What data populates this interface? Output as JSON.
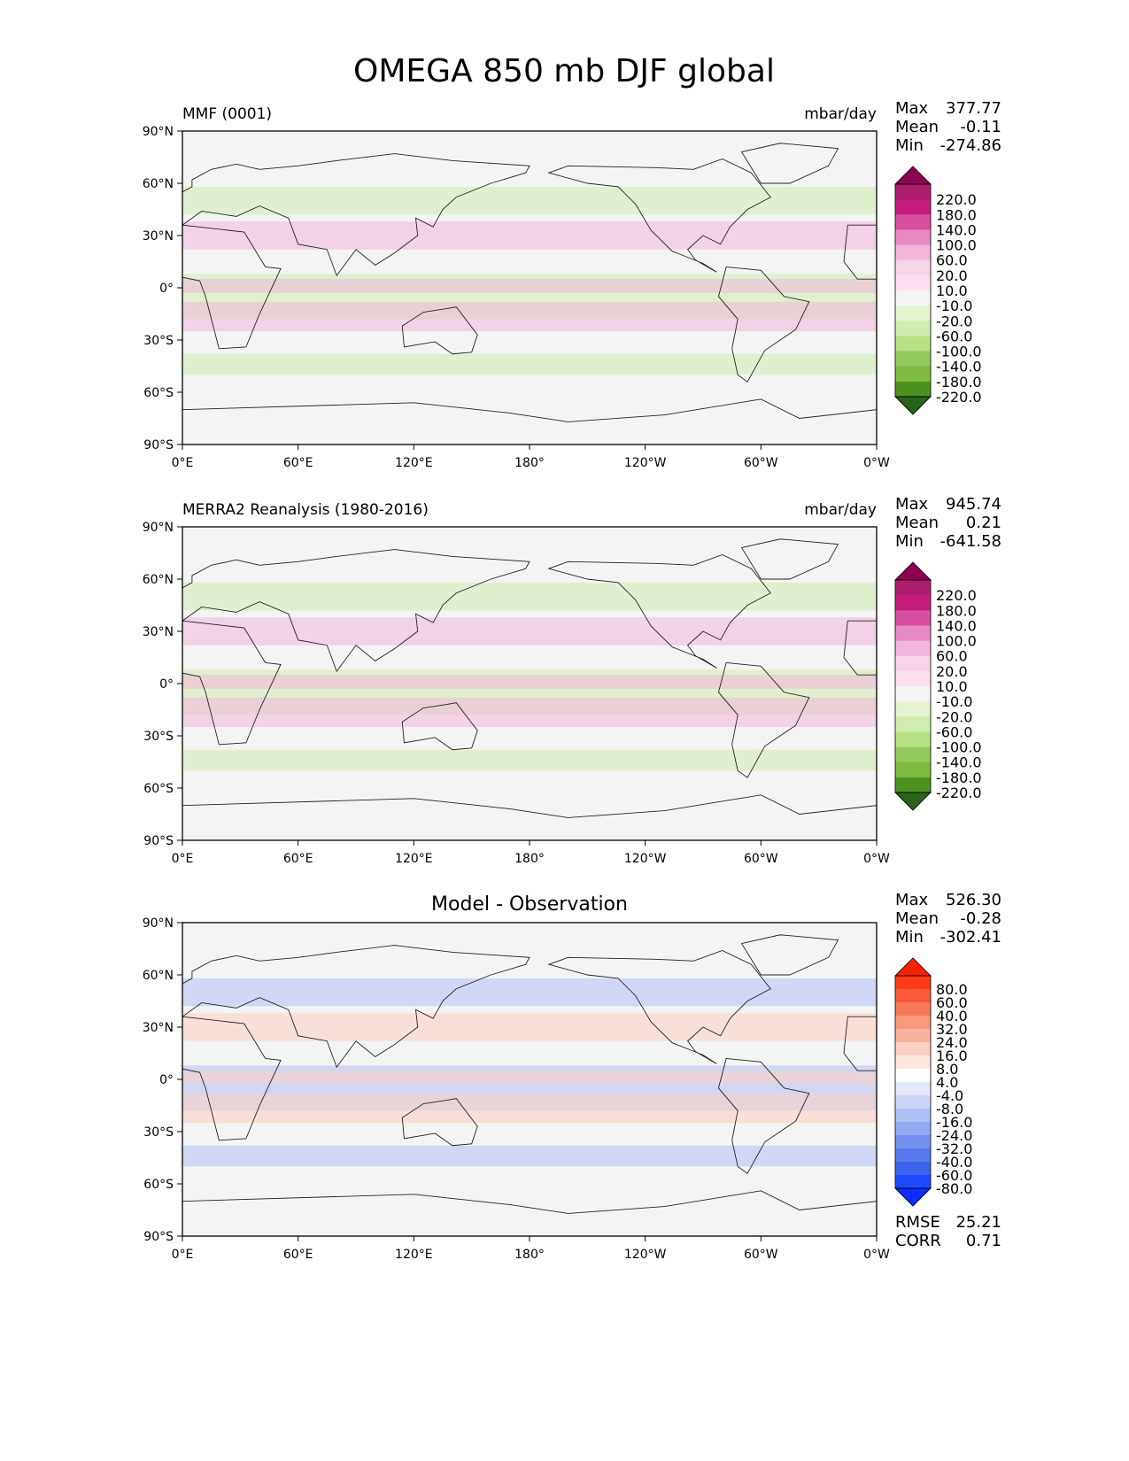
{
  "title": "OMEGA 850 mb DJF global",
  "panels": [
    {
      "left_title": "MMF (0001)",
      "center_title": "",
      "units": "mbar/day",
      "stats": [
        {
          "label": "Max",
          "value": "377.77"
        },
        {
          "label": "Mean",
          "value": "-0.11"
        },
        {
          "label": "Min",
          "value": "-274.86"
        }
      ],
      "extra_stats": []
    },
    {
      "left_title": "MERRA2 Reanalysis (1980-2016)",
      "center_title": "",
      "units": "mbar/day",
      "stats": [
        {
          "label": "Max",
          "value": "945.74"
        },
        {
          "label": "Mean",
          "value": "0.21"
        },
        {
          "label": "Min",
          "value": "-641.58"
        }
      ],
      "extra_stats": []
    },
    {
      "left_title": "",
      "center_title": "Model - Observation",
      "units": "",
      "stats": [
        {
          "label": "Max",
          "value": "526.30"
        },
        {
          "label": "Mean",
          "value": "-0.28"
        },
        {
          "label": "Min",
          "value": "-302.41"
        }
      ],
      "extra_stats": [
        {
          "label": "RMSE",
          "value": "25.21"
        },
        {
          "label": "CORR",
          "value": "0.71"
        }
      ]
    }
  ],
  "chart_data": [
    {
      "type": "heatmap",
      "title": "MMF (0001)",
      "units": "mbar/day",
      "x_ticks": [
        "0°E",
        "60°E",
        "120°E",
        "180°",
        "120°W",
        "60°W",
        "0°W"
      ],
      "y_ticks": [
        "90°N",
        "60°N",
        "30°N",
        "0°",
        "30°S",
        "60°S",
        "90°S"
      ],
      "colorbar": {
        "levels": [
          "220.0",
          "180.0",
          "140.0",
          "100.0",
          "60.0",
          "20.0",
          "10.0",
          "-10.0",
          "-20.0",
          "-60.0",
          "-100.0",
          "-140.0",
          "-180.0",
          "-220.0"
        ],
        "colors": [
          "#8e0152",
          "#ad1e6e",
          "#c51b7d",
          "#d94f9f",
          "#e78ac3",
          "#f1b6da",
          "#f7d4e8",
          "#fde0ef",
          "#f5f5f5",
          "#e6f5d0",
          "#d0ecb0",
          "#b8e186",
          "#94c95d",
          "#7fbc41",
          "#4d9221",
          "#276419"
        ],
        "extend": "both"
      }
    },
    {
      "type": "heatmap",
      "title": "MERRA2 Reanalysis (1980-2016)",
      "units": "mbar/day",
      "x_ticks": [
        "0°E",
        "60°E",
        "120°E",
        "180°",
        "120°W",
        "60°W",
        "0°W"
      ],
      "y_ticks": [
        "90°N",
        "60°N",
        "30°N",
        "0°",
        "30°S",
        "60°S",
        "90°S"
      ],
      "colorbar": {
        "levels": [
          "220.0",
          "180.0",
          "140.0",
          "100.0",
          "60.0",
          "20.0",
          "10.0",
          "-10.0",
          "-20.0",
          "-60.0",
          "-100.0",
          "-140.0",
          "-180.0",
          "-220.0"
        ],
        "colors": [
          "#8e0152",
          "#ad1e6e",
          "#c51b7d",
          "#d94f9f",
          "#e78ac3",
          "#f1b6da",
          "#f7d4e8",
          "#fde0ef",
          "#f5f5f5",
          "#e6f5d0",
          "#d0ecb0",
          "#b8e186",
          "#94c95d",
          "#7fbc41",
          "#4d9221",
          "#276419"
        ],
        "extend": "both"
      }
    },
    {
      "type": "heatmap",
      "title": "Model - Observation",
      "units": "",
      "x_ticks": [
        "0°E",
        "60°E",
        "120°E",
        "180°",
        "120°W",
        "60°W",
        "0°W"
      ],
      "y_ticks": [
        "90°N",
        "60°N",
        "30°N",
        "0°",
        "30°S",
        "60°S",
        "90°S"
      ],
      "colorbar": {
        "levels": [
          "80.0",
          "60.0",
          "40.0",
          "32.0",
          "24.0",
          "16.0",
          "8.0",
          "4.0",
          "-4.0",
          "-8.0",
          "-16.0",
          "-24.0",
          "-32.0",
          "-40.0",
          "-60.0",
          "-80.0"
        ],
        "colors": [
          "#ff2000",
          "#ff3b1a",
          "#fb5a38",
          "#f87a5a",
          "#f7977c",
          "#f8b39f",
          "#fbcfc2",
          "#fde7e0",
          "#ffffff",
          "#e4e9fb",
          "#ccd5f8",
          "#b1c0f5",
          "#93a9f2",
          "#7591ef",
          "#567aec",
          "#3b63ec",
          "#1f49ff",
          "#0b2dff"
        ],
        "extend": "both"
      }
    }
  ]
}
